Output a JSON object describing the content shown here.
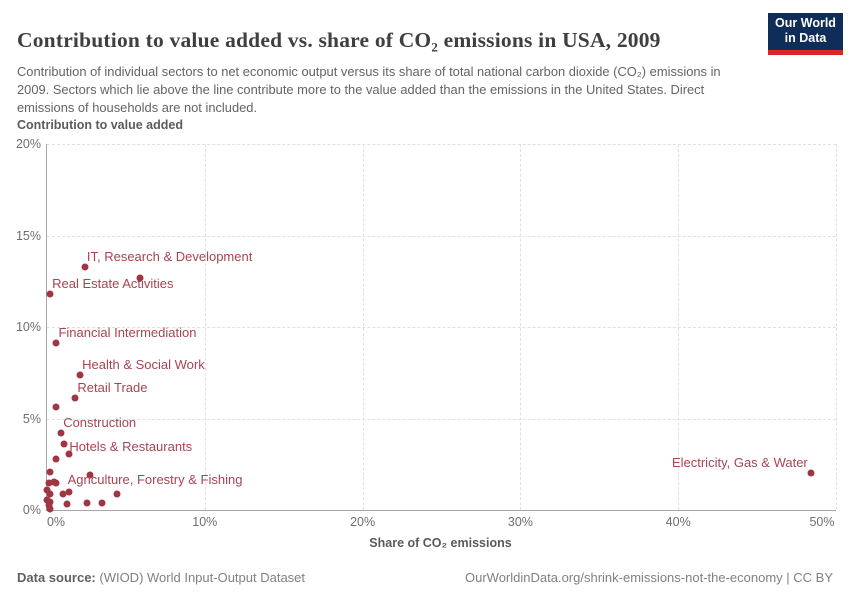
{
  "logo": {
    "line1": "Our World",
    "line2": "in Data"
  },
  "header": {
    "title": "Contribution to value added vs. share of CO₂ emissions in USA, 2009",
    "subtitle": "Contribution of individual sectors to net economic output versus its share of total national carbon dioxide (CO₂) emissions in 2009. Sectors which lie above the line contribute more to the value added than the emissions in the United States. Direct emissions of households are not included."
  },
  "footer": {
    "source_label": "Data source:",
    "source_text": " (WIOD) World Input-Output Dataset",
    "right_text": "OurWorldinData.org/shrink-emissions-not-the-economy | CC BY"
  },
  "colors": {
    "accent": "#a03543",
    "point_label": "#a94352",
    "logo_navy": "#0e2d59",
    "logo_red": "#d8252e"
  },
  "chart_data": {
    "type": "scatter",
    "title": "Contribution to value added vs. share of CO₂ emissions in USA, 2009",
    "xlabel": "Share of CO₂ emissions",
    "ylabel": "Contribution to value added",
    "xlim": [
      0,
      50
    ],
    "ylim": [
      0,
      20
    ],
    "grid": true,
    "x_ticks": [
      {
        "label": "0%",
        "value": 0
      },
      {
        "label": "10%",
        "value": 10
      },
      {
        "label": "20%",
        "value": 20
      },
      {
        "label": "30%",
        "value": 30
      },
      {
        "label": "40%",
        "value": 40
      },
      {
        "label": "50%",
        "value": 50
      }
    ],
    "y_ticks": [
      {
        "label": "0%",
        "value": 0
      },
      {
        "label": "5%",
        "value": 5
      },
      {
        "label": "10%",
        "value": 10
      },
      {
        "label": "15%",
        "value": 15
      },
      {
        "label": "20%",
        "value": 20
      }
    ],
    "points": [
      {
        "label": "IT, Research & Development",
        "x": 2.4,
        "y": 13.3,
        "label_placement": "above"
      },
      {
        "label": "Real Estate Activities",
        "x": 0.2,
        "y": 11.8,
        "label_placement": "above"
      },
      {
        "label": "Financial Intermediation",
        "x": 0.6,
        "y": 9.1,
        "label_placement": "above"
      },
      {
        "label": "Health & Social Work",
        "x": 2.1,
        "y": 7.4,
        "label_placement": "above"
      },
      {
        "label": "Retail Trade",
        "x": 1.8,
        "y": 6.1,
        "label_placement": "above"
      },
      {
        "label": "Construction",
        "x": 0.9,
        "y": 4.2,
        "label_placement": "above"
      },
      {
        "label": "Hotels & Restaurants",
        "x": 1.1,
        "y": 3.6,
        "label_placement": "right"
      },
      {
        "label": "Agriculture, Forestry & Fishing",
        "x": 2.7,
        "y": 1.9,
        "label_placement": "below-left"
      },
      {
        "label": "Electricity, Gas & Water",
        "x": 48.4,
        "y": 2.0,
        "label_placement": "left-above"
      },
      {
        "x": 5.9,
        "y": 12.7
      },
      {
        "x": 0.6,
        "y": 5.65
      },
      {
        "x": 1.4,
        "y": 3.05
      },
      {
        "x": 0.55,
        "y": 2.8
      },
      {
        "x": 0.2,
        "y": 2.1
      },
      {
        "x": 0.6,
        "y": 1.5
      },
      {
        "x": 0.1,
        "y": 1.45
      },
      {
        "x": 0.45,
        "y": 1.55
      },
      {
        "x": 0.0,
        "y": 1.1
      },
      {
        "x": 0.2,
        "y": 0.9
      },
      {
        "x": 1.0,
        "y": 0.9
      },
      {
        "x": 1.4,
        "y": 1.0
      },
      {
        "x": 4.45,
        "y": 0.85
      },
      {
        "x": 0.0,
        "y": 0.55
      },
      {
        "x": 0.2,
        "y": 0.45
      },
      {
        "x": 0.1,
        "y": 0.27
      },
      {
        "x": 1.25,
        "y": 0.35
      },
      {
        "x": 2.55,
        "y": 0.37
      },
      {
        "x": 3.5,
        "y": 0.37
      },
      {
        "x": 0.2,
        "y": 0.05
      }
    ]
  }
}
